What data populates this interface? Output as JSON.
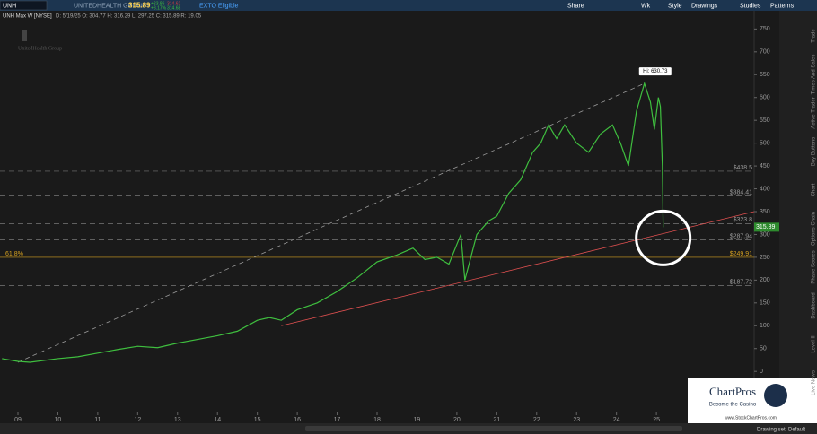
{
  "toolbar": {
    "symbol": "UNH",
    "company": "UNITEDHEALTH GROUP I",
    "price": "315.89",
    "change": "+23.86",
    "change_pct": "+8.17%",
    "bid": "314.62",
    "ask": "314.68",
    "exto": "EXTO Eligible",
    "buttons": [
      "Share",
      "Wk",
      "Style",
      "Drawings",
      "Studies",
      "Patterns"
    ]
  },
  "sidebar": [
    "Trade",
    "Times And Sales",
    "Active Trader",
    "Buy Buttons",
    "Chart",
    "Options Chain",
    "Phase Scores",
    "Dashboard",
    "Level II",
    "Live News"
  ],
  "watermark": "UnitedHealth Group",
  "ad": {
    "brand": "ChartPros",
    "tagline": "Become the Casino",
    "url": "www.StockChartPros.com"
  },
  "status": "Drawing set: Default",
  "chart_data": {
    "type": "line",
    "title": "UNH Max W [NYSE]",
    "subtitle": "D: 5/19/25  O: 304.77  H: 316.29  L: 297.25  C: 315.89  R: 19.05",
    "x": [
      2008.6,
      2009.0,
      2009.3,
      2010,
      2010.5,
      2011,
      2011.5,
      2012,
      2012.5,
      2013,
      2013.5,
      2014,
      2014.5,
      2015,
      2015.3,
      2015.6,
      2016,
      2016.5,
      2017,
      2017.5,
      2018,
      2018.5,
      2018.9,
      2019.2,
      2019.5,
      2019.8,
      2020.1,
      2020.2,
      2020.5,
      2020.8,
      2021,
      2021.3,
      2021.6,
      2021.9,
      2022.1,
      2022.3,
      2022.5,
      2022.7,
      2023,
      2023.3,
      2023.6,
      2023.9,
      2024.1,
      2024.3,
      2024.5,
      2024.7,
      2024.85,
      2024.95,
      2025.05,
      2025.1,
      2025.15,
      2025.17
    ],
    "color": "#3fbf3f",
    "values": [
      28,
      22,
      20,
      28,
      32,
      40,
      48,
      55,
      52,
      62,
      70,
      78,
      88,
      112,
      118,
      112,
      135,
      150,
      175,
      205,
      240,
      255,
      270,
      245,
      250,
      235,
      300,
      200,
      300,
      330,
      340,
      390,
      420,
      480,
      500,
      540,
      510,
      540,
      500,
      480,
      520,
      540,
      500,
      450,
      570,
      630.73,
      590,
      530,
      600,
      580,
      450,
      315.89
    ],
    "annotation": "Hi: 630.73",
    "last_label": "315.89",
    "levels": [
      {
        "value": 438.5,
        "label": "$438.5"
      },
      {
        "value": 384.41,
        "label": "$384.41"
      },
      {
        "value": 323.8,
        "label": "$323.8"
      },
      {
        "value": 287.94,
        "label": "$287.94"
      },
      {
        "value": 249.91,
        "label": "$249.91"
      },
      {
        "value": 187.72,
        "label": "$187.72"
      }
    ],
    "fib_label": "61.8%",
    "trendlines": [
      {
        "color": "#9a9a9a",
        "x": [
          2009.0,
          2024.7
        ],
        "values": [
          20,
          630.73
        ]
      },
      {
        "color": "#e05050",
        "x": [
          2015.6,
          2027.45
        ],
        "values": [
          100,
          350
        ]
      }
    ],
    "xlim": [
      2008.55,
      2027.45
    ],
    "ylim": [
      -90,
      790
    ],
    "xticks": [
      {
        "value": 2009,
        "label": "09"
      },
      {
        "value": 2010,
        "label": "10"
      },
      {
        "value": 2011,
        "label": "11"
      },
      {
        "value": 2012,
        "label": "12"
      },
      {
        "value": 2013,
        "label": "13"
      },
      {
        "value": 2014,
        "label": "14"
      },
      {
        "value": 2015,
        "label": "15"
      },
      {
        "value": 2016,
        "label": "16"
      },
      {
        "value": 2017,
        "label": "17"
      },
      {
        "value": 2018,
        "label": "18"
      },
      {
        "value": 2019,
        "label": "19"
      },
      {
        "value": 2020,
        "label": "20"
      },
      {
        "value": 2021,
        "label": "21"
      },
      {
        "value": 2022,
        "label": "22"
      },
      {
        "value": 2023,
        "label": "23"
      },
      {
        "value": 2024,
        "label": "24"
      },
      {
        "value": 2025,
        "label": "25"
      }
    ],
    "yticks": [
      0,
      50,
      100,
      150,
      200,
      250,
      300,
      350,
      400,
      450,
      500,
      550,
      600,
      650,
      700,
      750
    ]
  }
}
